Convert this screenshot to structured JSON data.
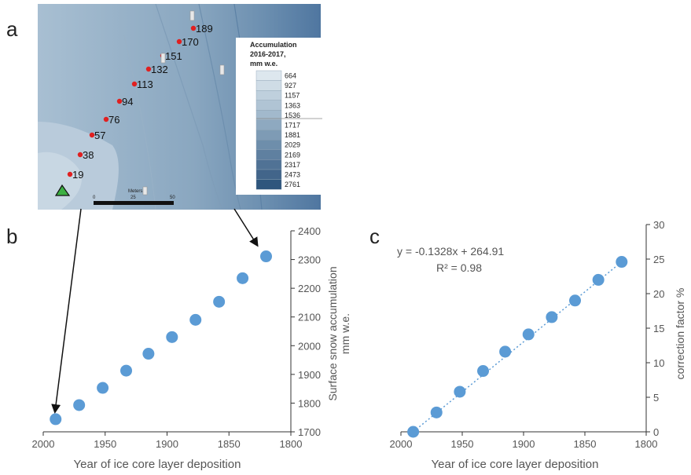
{
  "panels": {
    "a": "a",
    "b": "b",
    "c": "c"
  },
  "map": {
    "sample_points": [
      "19",
      "38",
      "57",
      "76",
      "94",
      "113",
      "132",
      "151",
      "170",
      "189"
    ],
    "legend_title": [
      "Accumulation",
      "2016-2017,",
      "mm w.e."
    ],
    "legend_values": [
      "664",
      "927",
      "1157",
      "1363",
      "1536",
      "1717",
      "1881",
      "2029",
      "2169",
      "2317",
      "2473",
      "2761"
    ],
    "legend_colors": [
      "#dde7ee",
      "#cfdce6",
      "#bfd0dd",
      "#b0c4d4",
      "#a2b9cc",
      "#8ea9c0",
      "#7e9bb5",
      "#6e8eab",
      "#5f80a0",
      "#507295",
      "#42658a",
      "#2f567d"
    ],
    "scale_label": "Meters",
    "scale_ticks": [
      "0",
      "25",
      "50"
    ]
  },
  "chart_data": [
    {
      "type": "scatter",
      "x": [
        1990,
        1971,
        1952,
        1933,
        1915,
        1896,
        1877,
        1858,
        1839,
        1820
      ],
      "y": [
        1744,
        1793,
        1853,
        1913,
        1972,
        2030,
        2090,
        2153,
        2235,
        2311
      ],
      "xlabel": "Year of ice core layer deposition",
      "ylabel": [
        "Surface snow accumulation",
        "mm w.e."
      ],
      "xlim": [
        2000,
        1800
      ],
      "ylim": [
        1700,
        2400
      ],
      "xticks": [
        "2000",
        "1950",
        "1900",
        "1850",
        "1800"
      ],
      "yticks": [
        "1700",
        "1800",
        "1900",
        "2000",
        "2100",
        "2200",
        "2300",
        "2400"
      ],
      "color": "#5b9bd5"
    },
    {
      "type": "scatter",
      "x": [
        1990,
        1971,
        1952,
        1933,
        1915,
        1896,
        1877,
        1858,
        1839,
        1820
      ],
      "y": [
        0,
        2.8,
        5.8,
        8.8,
        11.6,
        14.1,
        16.6,
        19.0,
        22.0,
        24.6
      ],
      "xlabel": "Year of ice core layer deposition",
      "ylabel": "correction factor %",
      "xlim": [
        2000,
        1800
      ],
      "ylim": [
        0,
        30
      ],
      "xticks": [
        "2000",
        "1950",
        "1900",
        "1850",
        "1800"
      ],
      "yticks": [
        "0",
        "5",
        "10",
        "15",
        "20",
        "25",
        "30"
      ],
      "equation": "y = -0.1328x + 264.91",
      "r2": "R² = 0.98",
      "color": "#5b9bd5"
    }
  ]
}
